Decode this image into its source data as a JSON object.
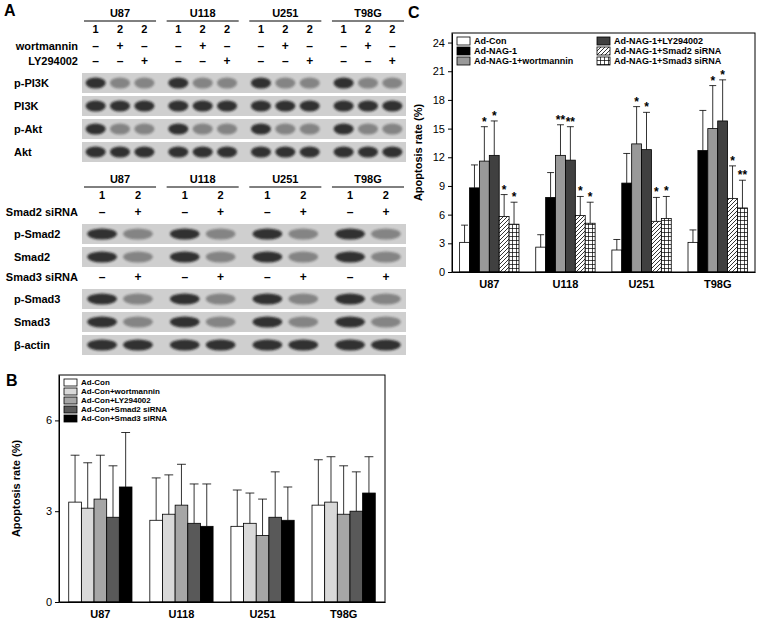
{
  "panel_a": {
    "label": "A",
    "blocks": [
      {
        "cell_lines": [
          "U87",
          "U118",
          "U251",
          "T98G"
        ],
        "lanes": [
          "1",
          "2",
          "2"
        ],
        "rows": [
          {
            "name": "wortmannin",
            "signs": [
              "–",
              "+",
              "–"
            ]
          },
          {
            "name": "LY294002",
            "signs": [
              "–",
              "–",
              "+"
            ]
          },
          {
            "name": "p-PI3K"
          },
          {
            "name": "PI3K"
          },
          {
            "name": "p-Akt"
          },
          {
            "name": "Akt"
          }
        ]
      },
      {
        "cell_lines": [
          "U87",
          "U118",
          "U251",
          "T98G"
        ],
        "lanes": [
          "1",
          "2"
        ],
        "rows": [
          {
            "name": "Smad2 siRNA",
            "signs": [
              "–",
              "+"
            ]
          },
          {
            "name": "p-Smad2"
          },
          {
            "name": "Smad2"
          },
          {
            "name": "Smad3 siRNA",
            "signs": [
              "–",
              "+"
            ]
          },
          {
            "name": "p-Smad3"
          },
          {
            "name": "Smad3"
          },
          {
            "name": "β-actin"
          }
        ]
      }
    ]
  },
  "chart_data": [
    {
      "type": "bar",
      "title": "B",
      "y_label": "Apoptosis rate (%)",
      "categories": [
        "U87",
        "U118",
        "U251",
        "T98G"
      ],
      "series": [
        {
          "name": "Ad-Con",
          "color": "#ffffff",
          "values": [
            3.3,
            2.7,
            2.5,
            3.2
          ],
          "errors": [
            1.55,
            1.4,
            1.2,
            1.5
          ]
        },
        {
          "name": "Ad-Con+wortmannin",
          "color": "#d9d9d9",
          "values": [
            3.1,
            2.9,
            2.6,
            3.3
          ],
          "errors": [
            1.5,
            1.3,
            1.0,
            1.5
          ]
        },
        {
          "name": "Ad-Con+LY294002",
          "color": "#a6a6a6",
          "values": [
            3.4,
            3.2,
            2.2,
            2.9
          ],
          "errors": [
            1.45,
            1.35,
            1.2,
            1.6
          ]
        },
        {
          "name": "Ad-Con+Smad2 siRNA",
          "color": "#595959",
          "values": [
            2.8,
            2.6,
            2.8,
            3.0
          ],
          "errors": [
            1.7,
            1.3,
            1.5,
            1.3
          ]
        },
        {
          "name": "Ad-Con+Smad3 siRNA",
          "color": "#000000",
          "values": [
            3.8,
            2.5,
            2.7,
            3.6
          ],
          "errors": [
            1.8,
            1.4,
            1.1,
            1.2
          ]
        }
      ],
      "ylim": [
        0,
        7.5
      ],
      "yticks": [
        0,
        3,
        6
      ],
      "legend": "upper left"
    },
    {
      "type": "bar",
      "title": "C",
      "y_label": "Apoptosis rate (%)",
      "categories": [
        "U87",
        "U118",
        "U251",
        "T98G"
      ],
      "series": [
        {
          "name": "Ad-Con",
          "color": "#ffffff",
          "values": [
            3.1,
            2.6,
            2.3,
            3.1
          ],
          "errors": [
            1.8,
            1.3,
            1.1,
            1.3
          ]
        },
        {
          "name": "Ad-NAG-1",
          "color": "#000000",
          "values": [
            8.8,
            7.8,
            9.3,
            12.7
          ],
          "errors": [
            2.4,
            2.6,
            3.1,
            4.2
          ]
        },
        {
          "name": "Ad-NAG-1+wortmannin",
          "color": "#999999",
          "values": [
            11.6,
            12.2,
            13.4,
            15.0
          ],
          "errors": [
            3.6,
            3.2,
            3.9,
            4.5
          ],
          "annotations": [
            "*",
            "**",
            "*",
            "*"
          ]
        },
        {
          "name": "Ad-NAG-1+LY294002",
          "color": "#404040",
          "values": [
            12.2,
            11.7,
            12.8,
            15.8
          ],
          "errors": [
            3.6,
            3.5,
            3.9,
            4.3
          ],
          "annotations": [
            "*",
            "**",
            "*",
            "*"
          ]
        },
        {
          "name": "Ad-NAG-1+Smad2 siRNA",
          "color": "#ffffff",
          "marker": "diagonal-hatch",
          "values": [
            5.8,
            5.9,
            5.3,
            7.7
          ],
          "errors": [
            2.3,
            2.0,
            2.5,
            3.4
          ],
          "annotations": [
            "*",
            "*",
            "*",
            "*"
          ]
        },
        {
          "name": "Ad-NAG-1+Smad3 siRNA",
          "color": "#ffffff",
          "marker": "grid-hatch",
          "values": [
            5.0,
            5.1,
            5.6,
            6.7
          ],
          "errors": [
            2.3,
            2.2,
            2.3,
            2.9
          ],
          "annotations": [
            "*",
            "*",
            "*",
            "**"
          ]
        }
      ],
      "ylim": [
        0,
        25
      ],
      "yticks": [
        0,
        3,
        6,
        9,
        12,
        15,
        18,
        21,
        24
      ],
      "legend": "upper left"
    }
  ]
}
